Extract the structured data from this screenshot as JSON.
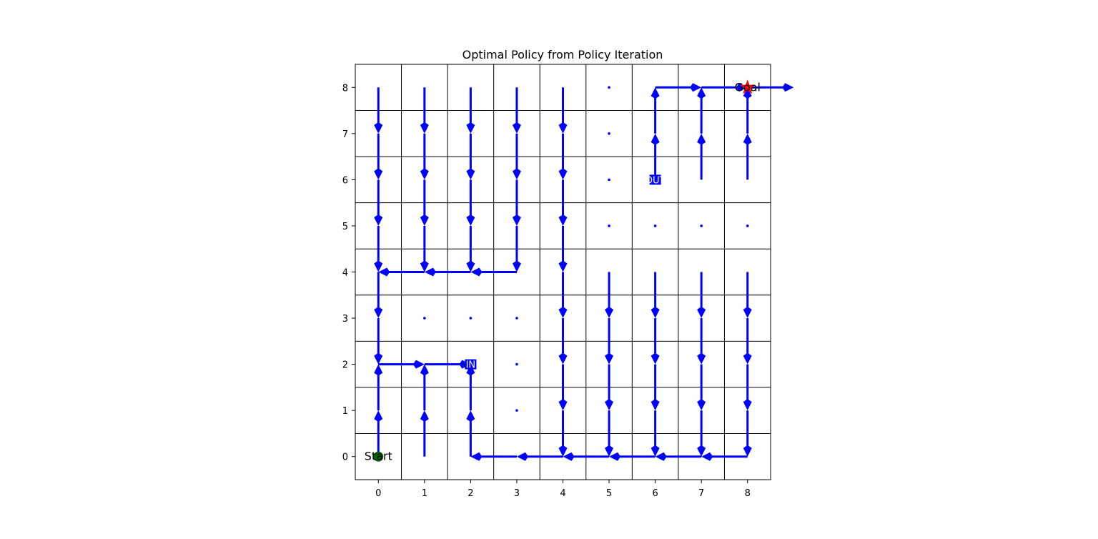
{
  "chart_data": {
    "type": "quiver",
    "title": "Optimal Policy from Policy Iteration",
    "xlabel": "",
    "ylabel": "",
    "xlim": [
      -0.5,
      8.5
    ],
    "ylim": [
      -0.5,
      8.5
    ],
    "x_ticks": [
      0,
      1,
      2,
      3,
      4,
      5,
      6,
      7,
      8
    ],
    "y_ticks": [
      0,
      1,
      2,
      3,
      4,
      5,
      6,
      7,
      8
    ],
    "grid": true,
    "arrow_color": "#0000ff",
    "policy_rows_top_to_bottom": [
      [
        "down",
        "down",
        "down",
        "down",
        "down",
        "none",
        "right",
        "right",
        "right"
      ],
      [
        "down",
        "down",
        "down",
        "down",
        "down",
        "none",
        "up",
        "up",
        "up"
      ],
      [
        "down",
        "down",
        "down",
        "down",
        "down",
        "none",
        "up",
        "up",
        "up"
      ],
      [
        "down",
        "down",
        "down",
        "down",
        "down",
        "none",
        "none",
        "none",
        "none"
      ],
      [
        "down",
        "left",
        "left",
        "left",
        "down",
        "down",
        "down",
        "down",
        "down"
      ],
      [
        "down",
        "none",
        "none",
        "none",
        "down",
        "down",
        "down",
        "down",
        "down"
      ],
      [
        "right",
        "right",
        "none",
        "none",
        "down",
        "down",
        "down",
        "down",
        "down"
      ],
      [
        "up",
        "up",
        "up",
        "none",
        "down",
        "down",
        "down",
        "down",
        "down"
      ],
      [
        "up",
        "up",
        "up",
        "left",
        "left",
        "left",
        "left",
        "left",
        "left"
      ]
    ],
    "start": {
      "x": 0,
      "y": 0,
      "label": "Start",
      "color": "#006400"
    },
    "goal": {
      "x": 8,
      "y": 8,
      "label": "Goal",
      "color": "#ff0000"
    },
    "portals": [
      {
        "x": 2,
        "y": 2,
        "label": "IN",
        "color": "#0000ff"
      },
      {
        "x": 6,
        "y": 6,
        "label": "OUT",
        "color": "#0000ff"
      }
    ]
  }
}
